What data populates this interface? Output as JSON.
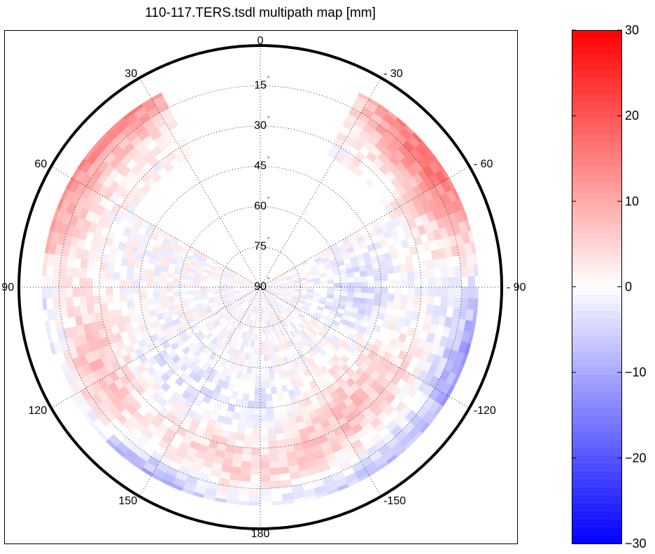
{
  "chart_data": {
    "type": "heatmap",
    "projection": "polar",
    "title": "110-117.TERS.tsdl multipath map [mm]",
    "units": "mm",
    "elevation_rings": [
      {
        "value": 15,
        "label": "15"
      },
      {
        "value": 30,
        "label": "30"
      },
      {
        "value": 45,
        "label": "45"
      },
      {
        "value": 60,
        "label": "60"
      },
      {
        "value": 75,
        "label": "75"
      },
      {
        "value": 90,
        "label": "90"
      }
    ],
    "azimuth_spokes": [
      {
        "value": 0,
        "label": "0"
      },
      {
        "value": 30,
        "label": "30"
      },
      {
        "value": 60,
        "label": "60"
      },
      {
        "value": 90,
        "label": "90"
      },
      {
        "value": 120,
        "label": "120"
      },
      {
        "value": 150,
        "label": "150"
      },
      {
        "value": 180,
        "label": "180"
      },
      {
        "value": -30,
        "label": "- 30"
      },
      {
        "value": -60,
        "label": "- 60"
      },
      {
        "value": -90,
        "label": "- 90"
      },
      {
        "value": -120,
        "label": "-120"
      },
      {
        "value": -150,
        "label": "-150"
      }
    ],
    "elevation_range": [
      0,
      90
    ],
    "grid": true,
    "colorbar": {
      "min": -30,
      "max": 30,
      "ticks": [
        30,
        20,
        10,
        0,
        -10,
        -20,
        -30
      ],
      "tick_labels": [
        "30",
        "20",
        "10",
        "0",
        "−10",
        "−20",
        "−30"
      ],
      "colormap": "blue-white-red",
      "color_low": "#0000ff",
      "color_mid": "#ffffff",
      "color_high": "#ff0000",
      "levels": 64,
      "position": "right"
    },
    "data_gaps": [
      {
        "azimuth_from": -28,
        "azimuth_to": 28,
        "elevation_below": 90,
        "note": "no data (north)"
      },
      {
        "azimuth_from": 28,
        "azimuth_to": 60,
        "elevation_from": 35,
        "elevation_to": 90
      },
      {
        "azimuth_from": -60,
        "azimuth_to": -28,
        "elevation_from": 35,
        "elevation_to": 90
      }
    ],
    "value_clusters": [
      {
        "azimuth": 115,
        "elevation": 20,
        "value": 8
      },
      {
        "azimuth": 165,
        "elevation": 25,
        "value": 6
      },
      {
        "azimuth": -160,
        "elevation": 30,
        "value": 7
      },
      {
        "azimuth": -130,
        "elevation": 35,
        "value": 5
      },
      {
        "azimuth": -60,
        "elevation": 12,
        "value": 9
      },
      {
        "azimuth": 72,
        "elevation": 5,
        "value": 12
      },
      {
        "azimuth": -45,
        "elevation": 8,
        "value": 10
      },
      {
        "azimuth": 40,
        "elevation": 5,
        "value": 14
      },
      {
        "azimuth": 100,
        "elevation": 3,
        "value": -10
      },
      {
        "azimuth": 150,
        "elevation": 3,
        "value": -12
      },
      {
        "azimuth": -110,
        "elevation": 3,
        "value": -14
      },
      {
        "azimuth": -150,
        "elevation": 4,
        "value": -8
      },
      {
        "azimuth": 180,
        "elevation": 40,
        "value": -5
      },
      {
        "azimuth": 135,
        "elevation": 45,
        "value": -3
      },
      {
        "azimuth": -95,
        "elevation": 55,
        "value": -4
      }
    ]
  }
}
